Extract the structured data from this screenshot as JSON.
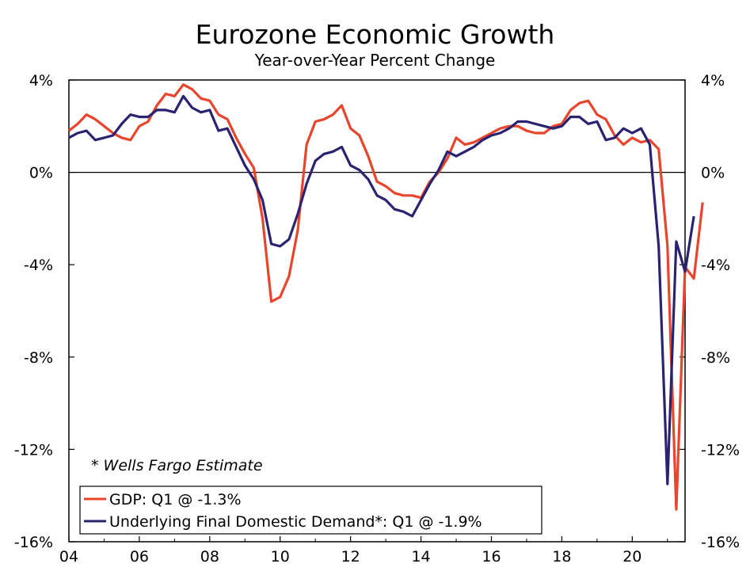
{
  "chart_data": {
    "type": "line",
    "title": "Eurozone Economic Growth",
    "subtitle": "Year-over-Year Percent Change",
    "xlabel": "",
    "ylabel": "",
    "x_tick_labels": [
      "04",
      "06",
      "08",
      "10",
      "12",
      "14",
      "16",
      "18",
      "20"
    ],
    "x_tick_years": [
      2004,
      2006,
      2008,
      2010,
      2012,
      2014,
      2016,
      2018,
      2020
    ],
    "xlim": [
      2004.0,
      2021.5
    ],
    "ylim": [
      -16,
      4
    ],
    "y_ticks": [
      4,
      0,
      -4,
      -8,
      -12,
      -16
    ],
    "y_tick_labels": [
      "4%",
      "0%",
      "-4%",
      "-8%",
      "-12%",
      "-16%"
    ],
    "zero_line": true,
    "grid": false,
    "note": "* Wells Fargo Estimate",
    "legend": {
      "placement": "bottom-left",
      "entries": [
        "GDP: Q1 @ -1.3%",
        "Underlying Final Domestic Demand*: Q1 @ -1.9%"
      ]
    },
    "series": [
      {
        "name": "GDP: Q1 @ -1.3%",
        "color": "#e8452c",
        "x_start": 2004.0,
        "x_step": 0.25,
        "values": [
          1.8,
          2.1,
          2.5,
          2.3,
          2.0,
          1.7,
          1.5,
          1.4,
          2.0,
          2.2,
          2.9,
          3.4,
          3.3,
          3.8,
          3.6,
          3.2,
          3.1,
          2.5,
          2.3,
          1.5,
          0.8,
          0.2,
          -2.0,
          -5.6,
          -5.4,
          -4.5,
          -2.5,
          1.2,
          2.2,
          2.3,
          2.5,
          2.9,
          1.9,
          1.6,
          0.7,
          -0.4,
          -0.6,
          -0.9,
          -1.0,
          -1.0,
          -1.1,
          -0.4,
          0.0,
          0.6,
          1.5,
          1.2,
          1.3,
          1.5,
          1.7,
          1.9,
          2.0,
          2.0,
          1.8,
          1.7,
          1.7,
          2.0,
          2.1,
          2.7,
          3.0,
          3.1,
          2.5,
          2.3,
          1.6,
          1.2,
          1.5,
          1.3,
          1.4,
          1.0,
          -3.2,
          -14.6,
          -4.1,
          -4.6,
          -1.3
        ]
      },
      {
        "name": "Underlying Final Domestic Demand*: Q1 @ -1.9%",
        "color": "#2a2370",
        "x_start": 2004.0,
        "x_step": 0.25,
        "values": [
          1.5,
          1.7,
          1.8,
          1.4,
          1.5,
          1.6,
          2.1,
          2.5,
          2.4,
          2.4,
          2.7,
          2.7,
          2.6,
          3.3,
          2.8,
          2.6,
          2.7,
          1.8,
          1.9,
          1.1,
          0.3,
          -0.3,
          -1.2,
          -3.1,
          -3.2,
          -2.9,
          -1.8,
          -0.5,
          0.5,
          0.8,
          0.9,
          1.1,
          0.3,
          0.1,
          -0.3,
          -1.0,
          -1.2,
          -1.6,
          -1.7,
          -1.9,
          -1.2,
          -0.5,
          0.1,
          0.9,
          0.7,
          0.9,
          1.1,
          1.4,
          1.6,
          1.7,
          1.9,
          2.2,
          2.2,
          2.1,
          2.0,
          1.9,
          2.0,
          2.4,
          2.4,
          2.1,
          2.2,
          1.4,
          1.5,
          1.9,
          1.7,
          1.9,
          1.2,
          -3.2,
          -13.5,
          -3.0,
          -4.3,
          -1.9
        ]
      }
    ]
  }
}
